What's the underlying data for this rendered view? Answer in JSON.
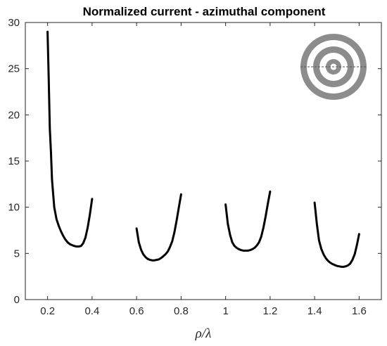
{
  "chart_data": {
    "type": "line",
    "title": "Normalized current - azimuthal component",
    "xlabel": "ρ/λ",
    "ylabel": "",
    "xlim": [
      0.1,
      1.7
    ],
    "ylim": [
      0,
      30
    ],
    "xticks": [
      0.2,
      0.4,
      0.6,
      0.8,
      1.0,
      1.2,
      1.4,
      1.6
    ],
    "xtick_labels": [
      "0.2",
      "0.4",
      "0.6",
      "0.8",
      "1",
      "1.2",
      "1.4",
      "1.6"
    ],
    "yticks": [
      0,
      5,
      10,
      15,
      20,
      25,
      30
    ],
    "ytick_labels": [
      "0",
      "5",
      "10",
      "15",
      "20",
      "25",
      "30"
    ],
    "grid": false,
    "line_color": "#000000",
    "series": [
      {
        "x": [
          0.2,
          0.205,
          0.21,
          0.215,
          0.22,
          0.23,
          0.24,
          0.25,
          0.26,
          0.27,
          0.28,
          0.29,
          0.3,
          0.31,
          0.32,
          0.33,
          0.34,
          0.35,
          0.36,
          0.37,
          0.38,
          0.39,
          0.4
        ],
        "y": [
          29.0,
          24.0,
          18.5,
          16.0,
          13.0,
          10.0,
          8.7,
          8.0,
          7.4,
          6.9,
          6.5,
          6.2,
          6.0,
          5.9,
          5.8,
          5.75,
          5.75,
          5.8,
          6.1,
          6.7,
          7.8,
          9.2,
          10.9
        ]
      },
      {
        "x": [
          0.6,
          0.61,
          0.62,
          0.63,
          0.64,
          0.65,
          0.66,
          0.67,
          0.68,
          0.69,
          0.7,
          0.71,
          0.72,
          0.73,
          0.74,
          0.75,
          0.76,
          0.77,
          0.78,
          0.79,
          0.8
        ],
        "y": [
          7.7,
          6.2,
          5.4,
          4.9,
          4.6,
          4.4,
          4.3,
          4.25,
          4.25,
          4.3,
          4.35,
          4.5,
          4.7,
          4.9,
          5.2,
          5.7,
          6.3,
          7.3,
          8.6,
          10.0,
          11.4
        ]
      },
      {
        "x": [
          1.0,
          1.01,
          1.02,
          1.03,
          1.04,
          1.05,
          1.06,
          1.07,
          1.08,
          1.09,
          1.1,
          1.11,
          1.12,
          1.13,
          1.14,
          1.15,
          1.16,
          1.17,
          1.18,
          1.19,
          1.2
        ],
        "y": [
          10.3,
          8.2,
          7.0,
          6.2,
          5.8,
          5.6,
          5.45,
          5.35,
          5.3,
          5.3,
          5.3,
          5.35,
          5.45,
          5.6,
          5.85,
          6.2,
          6.8,
          7.8,
          9.0,
          10.4,
          11.7
        ]
      },
      {
        "x": [
          1.4,
          1.41,
          1.42,
          1.43,
          1.44,
          1.45,
          1.46,
          1.47,
          1.48,
          1.49,
          1.5,
          1.51,
          1.52,
          1.53,
          1.54,
          1.55,
          1.56,
          1.57,
          1.58,
          1.59,
          1.6
        ],
        "y": [
          10.5,
          8.2,
          6.4,
          5.5,
          4.9,
          4.5,
          4.2,
          4.0,
          3.85,
          3.75,
          3.65,
          3.6,
          3.55,
          3.55,
          3.6,
          3.7,
          3.9,
          4.3,
          4.9,
          5.9,
          7.1
        ]
      }
    ],
    "inset_icon": "concentric-rings-icon",
    "inset_colors": {
      "ring": "#8c8c8c",
      "gap": "#ffffff",
      "axis_line": "#555555"
    }
  }
}
